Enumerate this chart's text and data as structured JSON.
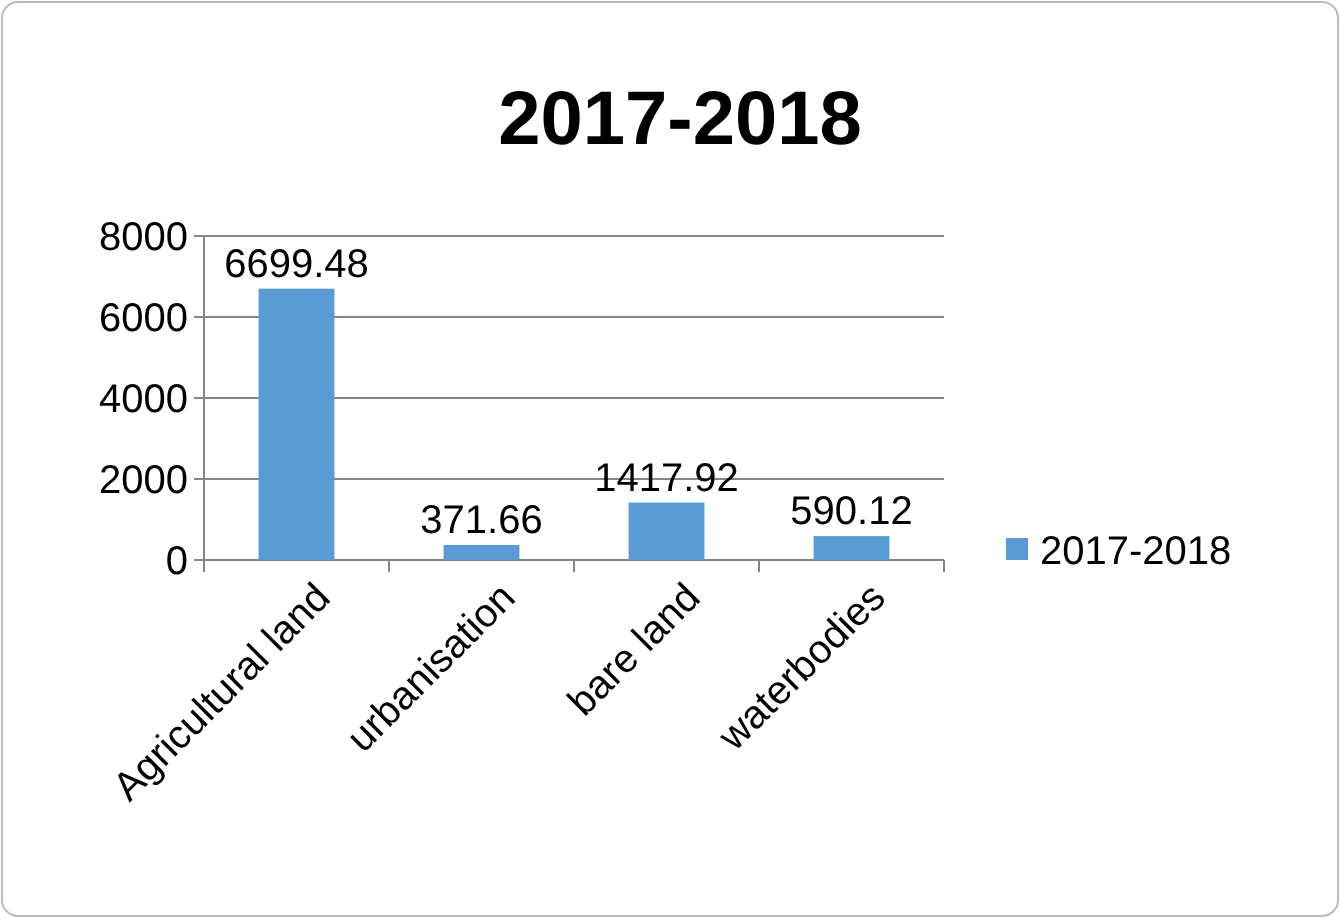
{
  "chart_data": {
    "type": "bar",
    "title": "2017-2018",
    "categories": [
      "Agricultural land",
      "urbanisation",
      "bare land",
      "waterbodies"
    ],
    "series": [
      {
        "name": "2017-2018",
        "color": "#5b9bd5",
        "values": [
          6699.48,
          371.66,
          1417.92,
          590.12
        ]
      }
    ],
    "ylim": [
      0,
      8000
    ],
    "yticks": [
      0,
      2000,
      4000,
      6000,
      8000
    ],
    "grid": "y",
    "legend": "right",
    "data_labels": true
  }
}
